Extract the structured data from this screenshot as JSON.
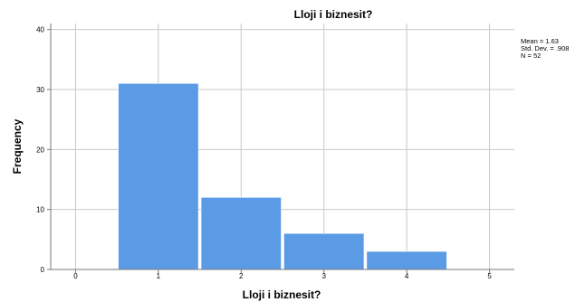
{
  "chart_data": {
    "type": "bar",
    "title": "Lloji i biznesit?",
    "xlabel": "Lloji i biznesit?",
    "ylabel": "Frequency",
    "categories": [
      "1",
      "2",
      "3",
      "4"
    ],
    "x": [
      1,
      2,
      3,
      4
    ],
    "values": [
      31,
      12,
      6,
      3
    ],
    "xlim": [
      -0.3,
      5.3
    ],
    "ylim": [
      0,
      41
    ],
    "xticks": [
      "0",
      "1",
      "2",
      "3",
      "4",
      "5"
    ],
    "yticks": [
      "0",
      "10",
      "20",
      "30",
      "40"
    ],
    "grid": true,
    "bar_color": "#5b9be6",
    "stats": [
      "Mean = 1.63",
      "Std. Dev. = .908",
      "N = 52"
    ]
  }
}
